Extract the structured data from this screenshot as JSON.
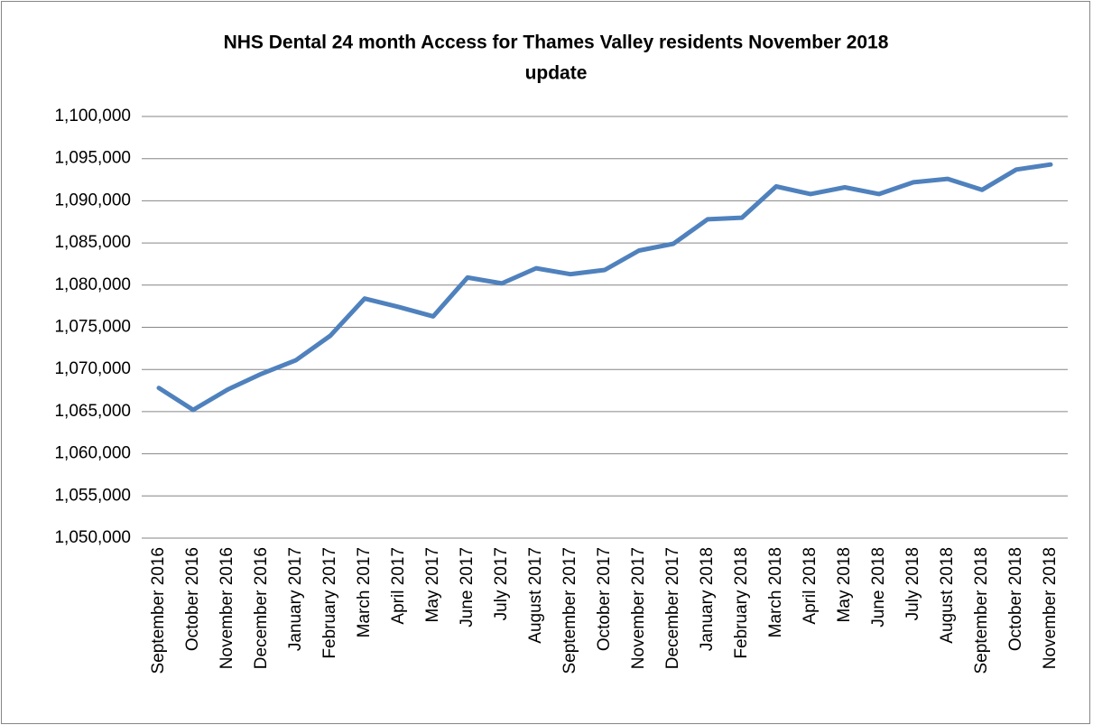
{
  "chart_data": {
    "type": "line",
    "title": [
      "NHS Dental 24 month Access for Thames Valley residents  November 2018",
      "update"
    ],
    "categories": [
      "September 2016",
      "October 2016",
      "November 2016",
      "December 2016",
      "January 2017",
      "February 2017",
      "March 2017",
      "April 2017",
      "May 2017",
      "June 2017",
      "July 2017",
      "August 2017",
      "September 2017",
      "October 2017",
      "November 2017",
      "December 2017",
      "January 2018",
      "February 2018",
      "March 2018",
      "April 2018",
      "May 2018",
      "June 2018",
      "July 2018",
      "August 2018",
      "September 2018",
      "October 2018",
      "November 2018"
    ],
    "values": [
      1067800,
      1065200,
      1067600,
      1069500,
      1071100,
      1074000,
      1078400,
      1077400,
      1076300,
      1080900,
      1080200,
      1082000,
      1081300,
      1081800,
      1084100,
      1084900,
      1087800,
      1088000,
      1091700,
      1090800,
      1091600,
      1090800,
      1092200,
      1092600,
      1091300,
      1093700,
      1094300
    ],
    "color": "#4f81bd",
    "ylim": [
      1050000,
      1100000
    ],
    "yticks": [
      {
        "value": 1050000,
        "label": "1,050,000"
      },
      {
        "value": 1055000,
        "label": "1,055,000"
      },
      {
        "value": 1060000,
        "label": "1,060,000"
      },
      {
        "value": 1065000,
        "label": "1,065,000"
      },
      {
        "value": 1070000,
        "label": "1,070,000"
      },
      {
        "value": 1075000,
        "label": "1,075,000"
      },
      {
        "value": 1080000,
        "label": "1,080,000"
      },
      {
        "value": 1085000,
        "label": "1,085,000"
      },
      {
        "value": 1090000,
        "label": "1,090,000"
      },
      {
        "value": 1095000,
        "label": "1,095,000"
      },
      {
        "value": 1100000,
        "label": "1,100,000"
      }
    ],
    "grid": true
  }
}
